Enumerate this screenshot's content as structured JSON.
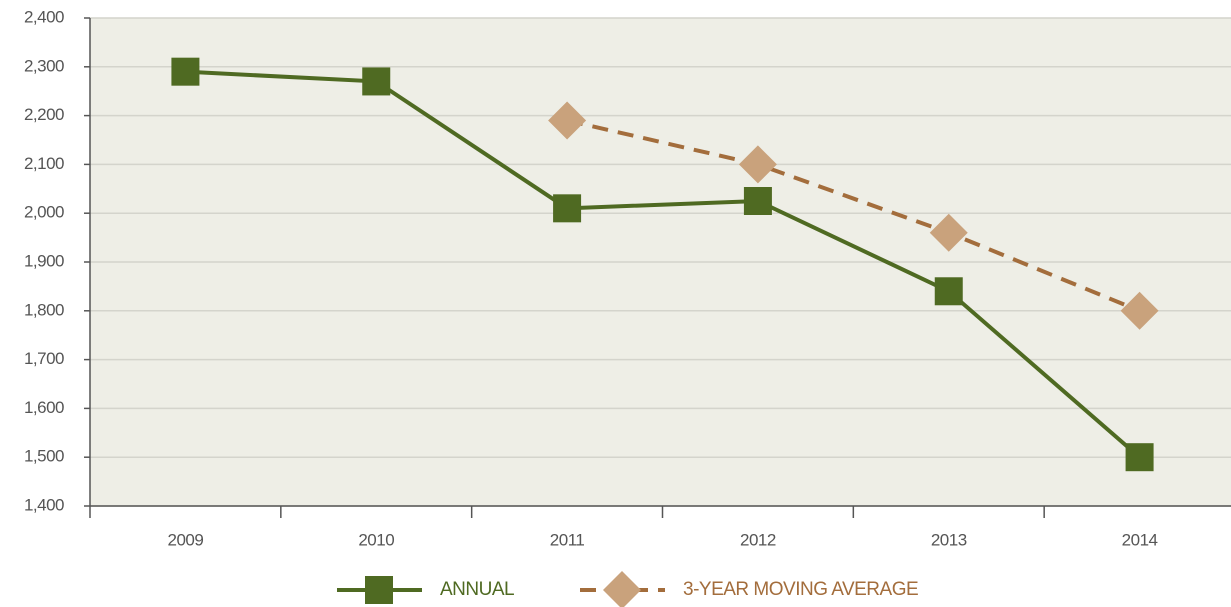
{
  "chart_data": {
    "type": "line",
    "categories": [
      "2009",
      "2010",
      "2011",
      "2012",
      "2013",
      "2014"
    ],
    "series": [
      {
        "name": "ANNUAL",
        "color": "#4f6a22",
        "marker": "square",
        "dashed": false,
        "values": [
          2290,
          2270,
          2010,
          2025,
          1840,
          1500
        ]
      },
      {
        "name": "3-YEAR MOVING AVERAGE",
        "color": "#a36d3c",
        "marker_color": "#c9a27c",
        "marker": "diamond",
        "dashed": true,
        "values": [
          null,
          null,
          2190,
          2100,
          1960,
          1800
        ]
      }
    ],
    "ylim": [
      1400,
      2400
    ],
    "yticks": [
      {
        "value": 1400,
        "label": "1,400"
      },
      {
        "value": 1500,
        "label": "1,500"
      },
      {
        "value": 1600,
        "label": "1,600"
      },
      {
        "value": 1700,
        "label": "1,700"
      },
      {
        "value": 1800,
        "label": "1,800"
      },
      {
        "value": 1900,
        "label": "1,900"
      },
      {
        "value": 2000,
        "label": "2,000"
      },
      {
        "value": 2100,
        "label": "2,100"
      },
      {
        "value": 2200,
        "label": "2,200"
      },
      {
        "value": 2300,
        "label": "2,300"
      },
      {
        "value": 2400,
        "label": "2,400"
      }
    ],
    "grid": true,
    "legend": "bottom"
  }
}
